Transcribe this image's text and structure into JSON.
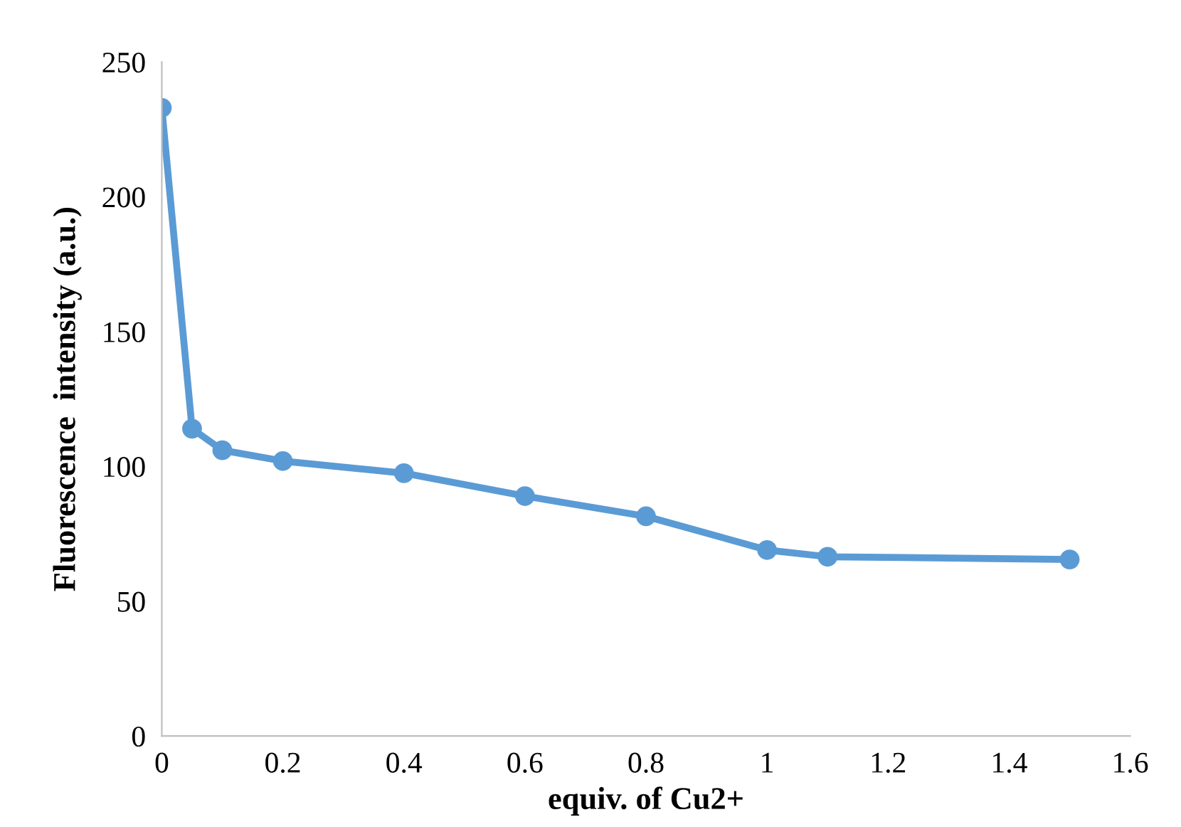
{
  "chart_data": {
    "type": "line",
    "xlabel": "equiv. of Cu2+",
    "ylabel": "Fluorescence  intensity (a.u.)",
    "x": [
      0,
      0.05,
      0.1,
      0.2,
      0.4,
      0.6,
      0.8,
      1.0,
      1.1,
      1.5
    ],
    "series": [
      {
        "color": "#5b9bd5",
        "values": [
          233,
          114,
          106,
          102,
          97.5,
          89,
          81.5,
          69,
          66.5,
          65.5
        ]
      }
    ],
    "xlim": [
      0,
      1.6
    ],
    "xticks": [
      0,
      0.2,
      0.4,
      0.6,
      0.8,
      1,
      1.2,
      1.4,
      1.6
    ],
    "ylim": [
      0,
      250
    ],
    "yticks": [
      0,
      50,
      100,
      150,
      200,
      250
    ],
    "grid": false,
    "legend": false,
    "marker": "circle",
    "line_style": "solid"
  }
}
